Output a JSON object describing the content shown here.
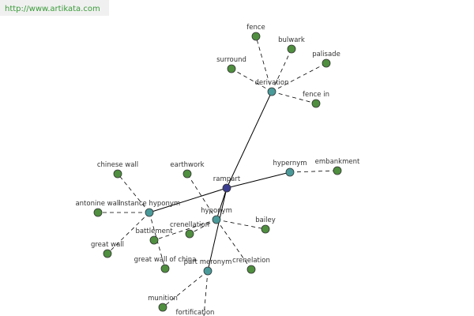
{
  "header": {
    "url": "http://www.artikata.com"
  },
  "nodes": [
    {
      "label": "rampart"
    },
    {
      "label": "derivation"
    },
    {
      "label": "hypernym"
    },
    {
      "label": "instance hyponym"
    },
    {
      "label": "hyponym"
    },
    {
      "label": "part meronym"
    },
    {
      "label": "fence"
    },
    {
      "label": "bulwark"
    },
    {
      "label": "palisade"
    },
    {
      "label": "surround"
    },
    {
      "label": "fence in"
    },
    {
      "label": "embankment"
    },
    {
      "label": "chinese wall"
    },
    {
      "label": "antonine wall"
    },
    {
      "label": "great wall"
    },
    {
      "label": "great wall of china"
    },
    {
      "label": "earthwork"
    },
    {
      "label": "battlement"
    },
    {
      "label": "crenellation"
    },
    {
      "label": "bailey"
    },
    {
      "label": "crenelation"
    },
    {
      "label": "munition"
    },
    {
      "label": "fortification"
    }
  ]
}
